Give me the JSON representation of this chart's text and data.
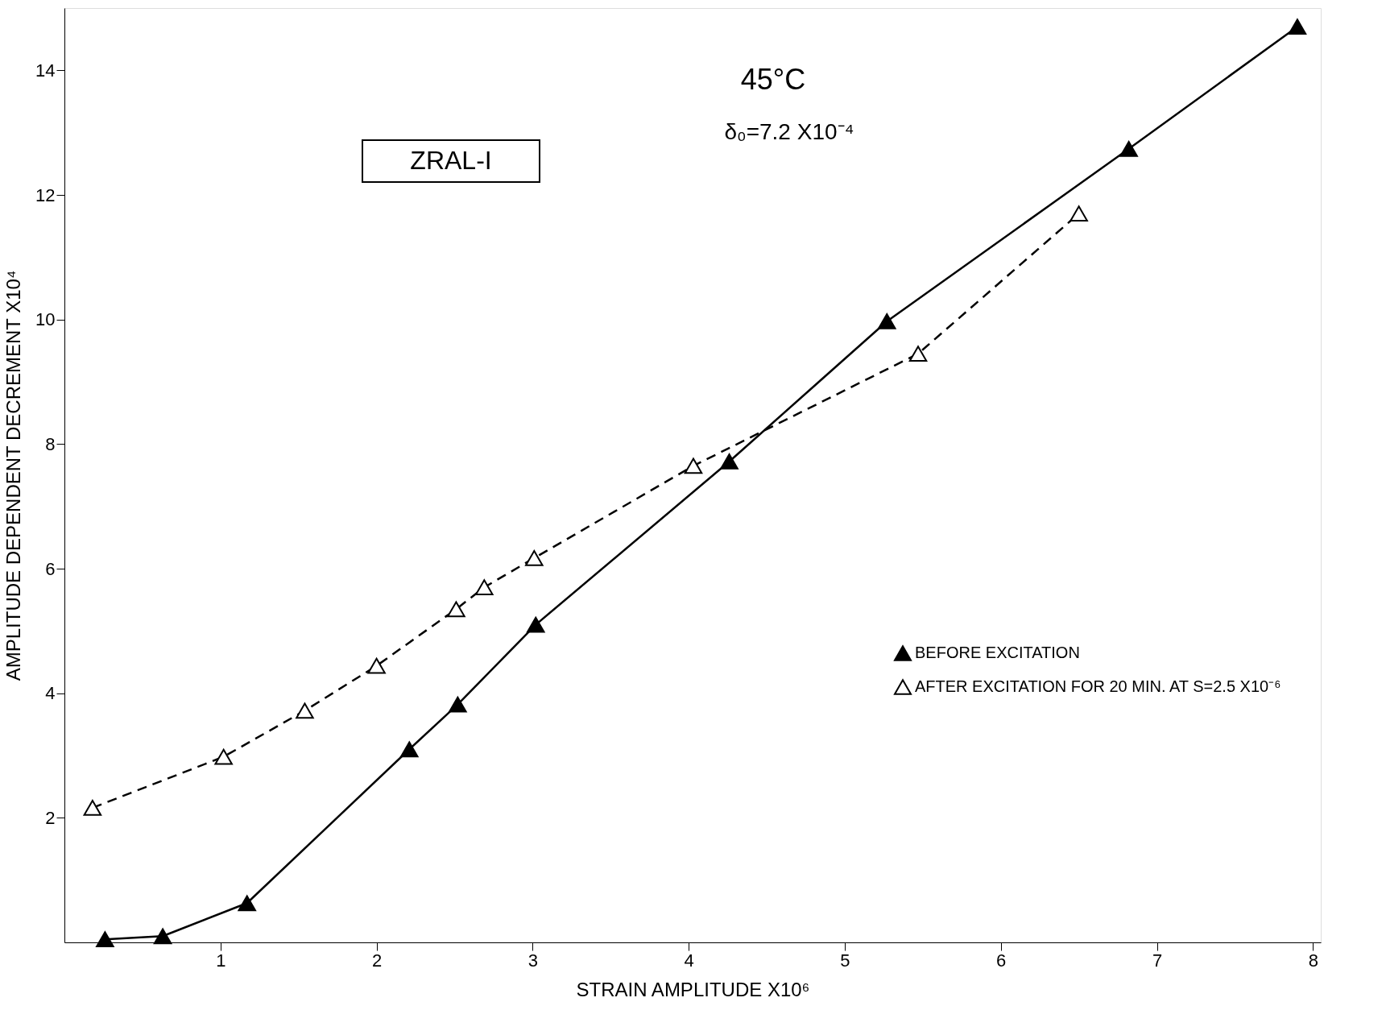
{
  "chart_data": {
    "type": "line",
    "xlabel": "STRAIN AMPLITUDE X10⁶",
    "ylabel": "AMPLITUDE DEPENDENT DECREMENT X10⁴",
    "annotations": [
      "45°C",
      "δ₀=7.2 X10⁻⁴",
      "ZRAL-I"
    ],
    "xlim": [
      0,
      8.05
    ],
    "ylim": [
      0,
      15
    ],
    "xticks": [
      1,
      2,
      3,
      4,
      5,
      6,
      7,
      8
    ],
    "yticks": [
      2,
      4,
      6,
      8,
      10,
      12,
      14
    ],
    "grid": false,
    "legend": "right",
    "marker": "triangle",
    "series": [
      {
        "name": "BEFORE EXCITATION",
        "color": "#000000",
        "line_style": "solid",
        "x": [
          0.26,
          0.63,
          1.17,
          2.21,
          2.52,
          3.02,
          4.26,
          5.27,
          6.82,
          7.9
        ],
        "values": [
          0.05,
          0.1,
          0.63,
          3.1,
          3.82,
          5.1,
          7.72,
          9.97,
          12.74,
          14.7
        ]
      },
      {
        "name": "AFTER EXCITATION FOR 20 MIN. AT S=2.5 X10⁻⁶",
        "color": "#000000",
        "line_style": "dashed",
        "x": [
          0.18,
          1.02,
          1.54,
          2.0,
          2.51,
          2.69,
          3.01,
          4.03,
          5.47,
          6.5
        ],
        "values": [
          2.16,
          2.98,
          3.72,
          4.44,
          5.35,
          5.7,
          6.17,
          7.65,
          9.45,
          11.7
        ]
      }
    ]
  }
}
